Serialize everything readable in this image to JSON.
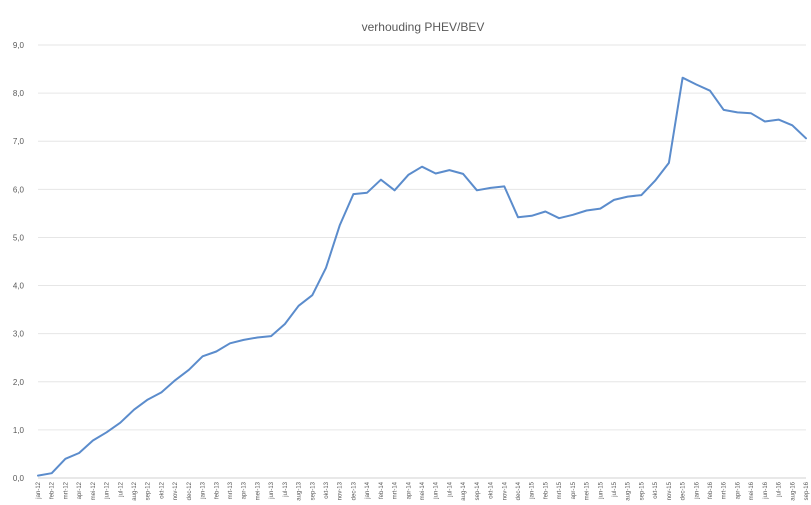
{
  "chart_data": {
    "type": "line",
    "title": "verhouding PHEV/BEV",
    "xlabel": "",
    "ylabel": "",
    "ylim": [
      0,
      9
    ],
    "yticks": [
      "0,0",
      "1,0",
      "2,0",
      "3,0",
      "4,0",
      "5,0",
      "6,0",
      "7,0",
      "8,0",
      "9,0"
    ],
    "grid": true,
    "legend": "none",
    "line_color": "#5b8ccc",
    "categories": [
      "jan-12",
      "feb-12",
      "mrt-12",
      "apr-12",
      "mei-12",
      "jun-12",
      "jul-12",
      "aug-12",
      "sep-12",
      "okt-12",
      "nov-12",
      "dec-12",
      "jan-13",
      "feb-13",
      "mrt-13",
      "apr-13",
      "mei-13",
      "jun-13",
      "jul-13",
      "aug-13",
      "sep-13",
      "okt-13",
      "nov-13",
      "dec-13",
      "jan-14",
      "feb-14",
      "mrt-14",
      "apr-14",
      "mei-14",
      "jun-14",
      "jul-14",
      "aug-14",
      "sep-14",
      "okt-14",
      "nov-14",
      "dec-14",
      "jan-15",
      "feb-15",
      "mrt-15",
      "apr-15",
      "mei-15",
      "jun-15",
      "jul-15",
      "aug-15",
      "sep-15",
      "okt-15",
      "nov-15",
      "dec-15",
      "jan-16",
      "feb-16",
      "mrt-16",
      "apr-16",
      "mei-16",
      "jun-16",
      "jul-16",
      "aug-16",
      "sep-16"
    ],
    "values": [
      0.05,
      0.1,
      0.4,
      0.52,
      0.78,
      0.95,
      1.15,
      1.42,
      1.63,
      1.78,
      2.03,
      2.25,
      2.53,
      2.63,
      2.8,
      2.87,
      2.92,
      2.95,
      3.2,
      3.58,
      3.8,
      4.37,
      5.25,
      5.9,
      5.93,
      6.2,
      5.98,
      6.3,
      6.47,
      6.33,
      6.4,
      6.32,
      5.98,
      6.03,
      6.06,
      5.42,
      5.45,
      5.54,
      5.4,
      5.47,
      5.56,
      5.6,
      5.78,
      5.85,
      5.88,
      6.18,
      6.55,
      8.32,
      8.18,
      8.05,
      7.65,
      7.6,
      7.58,
      7.41,
      7.45,
      7.33,
      7.06
    ]
  }
}
